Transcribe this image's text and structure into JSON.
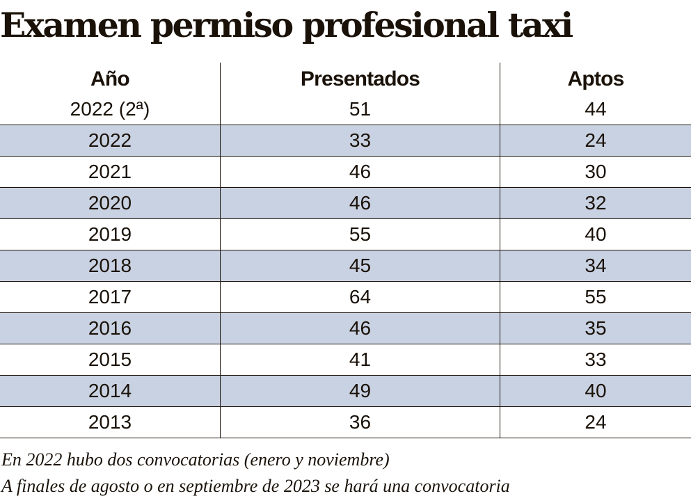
{
  "title": "Examen permiso profesional taxi",
  "chart_data": {
    "type": "table",
    "title": "Examen permiso profesional taxi",
    "columns": [
      "Año",
      "Presentados",
      "Aptos"
    ],
    "rows": [
      [
        "2022 (2ª)",
        "51",
        "44"
      ],
      [
        "2022",
        "33",
        "24"
      ],
      [
        "2021",
        "46",
        "30"
      ],
      [
        "2020",
        "46",
        "32"
      ],
      [
        "2019",
        "55",
        "40"
      ],
      [
        "2018",
        "45",
        "34"
      ],
      [
        "2017",
        "64",
        "55"
      ],
      [
        "2016",
        "46",
        "35"
      ],
      [
        "2015",
        "41",
        "33"
      ],
      [
        "2014",
        "49",
        "40"
      ],
      [
        "2013",
        "36",
        "24"
      ]
    ],
    "row_shading_color": "#c9d2e2"
  },
  "notes": [
    "En 2022 hubo dos convocatorias (enero y noviembre)",
    "A finales de agosto o en septiembre de 2023 se hará una convocatoria"
  ]
}
